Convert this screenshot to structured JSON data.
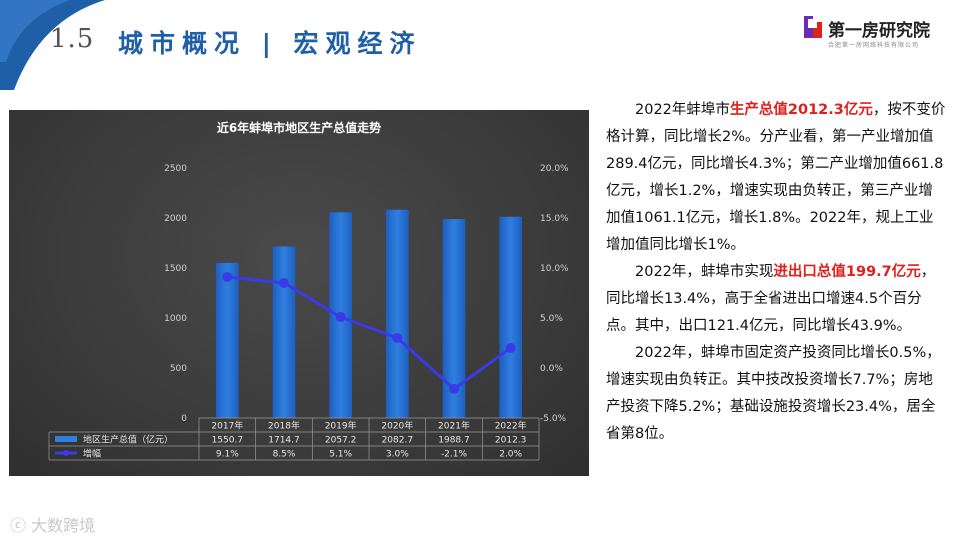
{
  "header": {
    "section_number": "1.5",
    "title": "城市概况 | 宏观经济",
    "logo_text": "第一房研究院",
    "logo_subtext": "合肥第一房网络科技有限公司"
  },
  "colors": {
    "title": "#1f5fa8",
    "bar": "#2f7fe0",
    "line": "#3a3ae8",
    "highlight": "#e0201c"
  },
  "chart_data": {
    "type": "bar",
    "title": "近6年蚌埠市地区生产总值走势",
    "categories": [
      "2017年",
      "2018年",
      "2019年",
      "2020年",
      "2021年",
      "2022年"
    ],
    "series": [
      {
        "name": "地区生产总值（亿元）",
        "type": "bar",
        "axis": "left",
        "values": [
          1550.7,
          1714.7,
          2057.2,
          2082.7,
          1988.7,
          2012.3
        ],
        "labels": [
          "1550.7",
          "1714.7",
          "2057.2",
          "2082.7",
          "1988.7",
          "2012.3"
        ]
      },
      {
        "name": "增幅",
        "type": "line",
        "axis": "right",
        "values": [
          9.1,
          8.5,
          5.1,
          3.0,
          -2.1,
          2.0
        ],
        "labels": [
          "9.1%",
          "8.5%",
          "5.1%",
          "3.0%",
          "-2.1%",
          "2.0%"
        ]
      }
    ],
    "y_left": {
      "range": [
        0,
        2500
      ],
      "ticks": [
        "0",
        "500",
        "1000",
        "1500",
        "2000",
        "2500"
      ]
    },
    "y_right": {
      "range": [
        -5,
        20
      ],
      "ticks": [
        "-5.0%",
        "0.0%",
        "5.0%",
        "10.0%",
        "15.0%",
        "20.0%"
      ]
    },
    "grid": false,
    "legend": "data-table-bottom"
  },
  "text": {
    "p1": [
      {
        "t": "2022年蚌埠市",
        "hl": false
      },
      {
        "t": "生产总值2012.3亿元",
        "hl": true
      },
      {
        "t": "，按不变价格计算，同比增长2%。分产业看，第一产业增加值289.4亿元，同比增长4.3%；第二产业增加值661.8亿元，增长1.2%，增速实现由负转正，第三产业增加值1061.1亿元，增长1.8%。2022年，规上工业增加值同比增长1%。",
        "hl": false
      }
    ],
    "p2": [
      {
        "t": "2022年，蚌埠市实现",
        "hl": false
      },
      {
        "t": "进出口总值199.7亿元",
        "hl": true
      },
      {
        "t": "，同比增长13.4%，高于全省进出口增速4.5个百分点。其中，出口121.4亿元，同比增长43.9%。",
        "hl": false
      }
    ],
    "p3": [
      {
        "t": "2022年，蚌埠市固定资产投资同比增长0.5%，增速实现由负转正。其中技改投资增长7.7%；房地产投资下降5.2%；基础设施投资增长23.4%，居全省第8位。",
        "hl": false
      }
    ]
  },
  "watermark": "大数跨境"
}
